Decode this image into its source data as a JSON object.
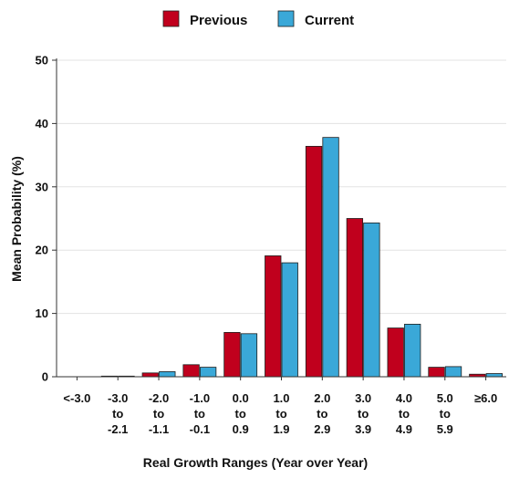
{
  "chart_data": {
    "type": "bar",
    "categories": [
      [
        "<-3.0"
      ],
      [
        "-3.0",
        "to",
        "-2.1"
      ],
      [
        "-2.0",
        "to",
        "-1.1"
      ],
      [
        "-1.0",
        "to",
        "-0.1"
      ],
      [
        "0.0",
        "to",
        "0.9"
      ],
      [
        "1.0",
        "to",
        "1.9"
      ],
      [
        "2.0",
        "to",
        "2.9"
      ],
      [
        "3.0",
        "to",
        "3.9"
      ],
      [
        "4.0",
        "to",
        "4.9"
      ],
      [
        "5.0",
        "to",
        "5.9"
      ],
      [
        "≥6.0"
      ]
    ],
    "series": [
      {
        "name": "Previous",
        "color": "#c0001d",
        "values": [
          0,
          0.1,
          0.6,
          1.9,
          7.0,
          19.1,
          36.4,
          25.0,
          7.7,
          1.5,
          0.4
        ]
      },
      {
        "name": "Current",
        "color": "#3aa8d8",
        "values": [
          0,
          0.1,
          0.8,
          1.5,
          6.8,
          18.0,
          37.8,
          24.3,
          8.3,
          1.6,
          0.5
        ]
      }
    ],
    "title": "",
    "xlabel": "Real Growth Ranges (Year over Year)",
    "ylabel": "Mean Probability (%)",
    "ylim": [
      0,
      50
    ],
    "yticks": [
      0,
      10,
      20,
      30,
      40,
      50
    ],
    "grid": true,
    "legend_position": "top-center"
  }
}
